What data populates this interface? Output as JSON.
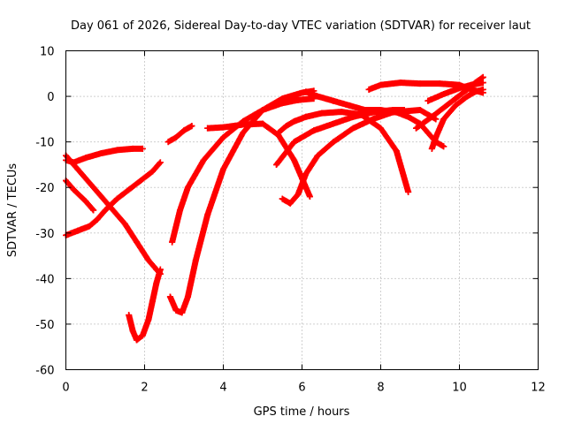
{
  "chart_data": {
    "type": "scatter",
    "title": "Day 061 of 2026, Sidereal Day-to-day VTEC variation (SDTVAR) for receiver laut",
    "xlabel": "GPS time / hours",
    "ylabel": "SDTVAR / TECUs",
    "xlim": [
      0,
      12
    ],
    "ylim": [
      -60,
      10
    ],
    "xticks": [
      "0",
      "2",
      "4",
      "6",
      "8",
      "10",
      "12"
    ],
    "yticks": [
      "-60",
      "-50",
      "-40",
      "-30",
      "-20",
      "-10",
      "0",
      "10"
    ],
    "grid": true,
    "marker": "plus",
    "marker_color": "#ff0000",
    "series": [
      {
        "x": [
          0.0,
          0.2,
          0.5,
          0.9,
          1.3,
          1.7,
          1.95
        ],
        "y": [
          -14,
          -14.5,
          -13.5,
          -12.5,
          -11.8,
          -11.5,
          -11.5
        ]
      },
      {
        "x": [
          0.0,
          0.3,
          0.7,
          1.1,
          1.5,
          1.8,
          2.1,
          2.3,
          2.4
        ],
        "y": [
          -13,
          -16,
          -20,
          -24,
          -28,
          -32,
          -36,
          -38,
          -39
        ]
      },
      {
        "x": [
          0.0,
          0.2,
          0.5,
          0.7
        ],
        "y": [
          -18.5,
          -20.5,
          -23,
          -25
        ]
      },
      {
        "x": [
          0.0,
          0.3,
          0.6,
          0.8,
          1.0,
          1.3,
          1.6,
          1.9,
          2.2,
          2.4
        ],
        "y": [
          -30.5,
          -29.5,
          -28.5,
          -27,
          -25,
          -22.5,
          -20.5,
          -18.5,
          -16.5,
          -14.5
        ]
      },
      {
        "x": [
          1.6,
          1.7,
          1.8,
          1.95,
          2.1,
          2.2,
          2.3,
          2.4
        ],
        "y": [
          -48,
          -51.5,
          -53.5,
          -52.5,
          -49,
          -45,
          -41,
          -38
        ]
      },
      {
        "x": [
          2.6,
          2.8,
          3.0,
          3.2
        ],
        "y": [
          -10,
          -9,
          -7.5,
          -6.5
        ]
      },
      {
        "x": [
          2.7,
          2.9,
          3.1,
          3.5,
          4.0,
          4.5,
          5.0,
          5.5,
          5.9,
          6.3
        ],
        "y": [
          -32,
          -25,
          -20,
          -14,
          -9,
          -5.5,
          -3,
          -1.5,
          -0.8,
          -0.5
        ]
      },
      {
        "x": [
          2.65,
          2.8,
          2.95,
          3.1,
          3.3,
          3.6,
          4.0,
          4.5,
          5.0,
          5.5,
          6.0,
          6.3
        ],
        "y": [
          -44,
          -47,
          -47.5,
          -44,
          -36,
          -26,
          -16,
          -8,
          -3,
          -0.5,
          0.8,
          1.2
        ]
      },
      {
        "x": [
          3.6,
          4.0,
          4.5,
          5.0,
          5.4,
          5.8,
          6.0,
          6.2
        ],
        "y": [
          -7,
          -6.8,
          -6.2,
          -6,
          -8.5,
          -14,
          -18,
          -22
        ]
      },
      {
        "x": [
          5.4,
          5.6,
          5.8,
          6.1,
          6.5,
          7.0,
          7.5,
          8.0,
          8.4,
          8.7
        ],
        "y": [
          -8,
          -6.5,
          -5.5,
          -4.5,
          -3.7,
          -3.4,
          -4,
          -7,
          -12,
          -21
        ]
      },
      {
        "x": [
          5.5,
          5.7,
          5.9,
          6.1,
          6.4,
          6.8,
          7.3,
          7.8,
          8.3,
          9.0,
          9.4
        ],
        "y": [
          -22.5,
          -23.5,
          -21.5,
          -17,
          -13,
          -10,
          -7,
          -5,
          -3.5,
          -3,
          -5
        ]
      },
      {
        "x": [
          5.35,
          5.8,
          6.3,
          6.8,
          7.3,
          7.8,
          8.3,
          8.6
        ],
        "y": [
          -15,
          -10,
          -7.5,
          -6,
          -4.5,
          -3.5,
          -3,
          -3
        ]
      },
      {
        "x": [
          6.1,
          6.4,
          6.8,
          7.2,
          7.6,
          8.0,
          8.4,
          8.7,
          9.0,
          9.2,
          9.4,
          9.6
        ],
        "y": [
          1,
          0,
          -1,
          -2,
          -3,
          -3,
          -3.5,
          -4.5,
          -6,
          -8,
          -10,
          -11
        ]
      },
      {
        "x": [
          7.7,
          8.0,
          8.5,
          9.0,
          9.5,
          10.0,
          10.3,
          10.6
        ],
        "y": [
          1.5,
          2.5,
          3,
          2.8,
          2.8,
          2.5,
          1.5,
          0.8
        ]
      },
      {
        "x": [
          9.3,
          9.4,
          9.6,
          9.9,
          10.2,
          10.4,
          10.6
        ],
        "y": [
          -11.5,
          -9,
          -5,
          -2,
          0,
          1,
          1.5
        ]
      },
      {
        "x": [
          8.9,
          9.3,
          9.6,
          9.9,
          10.2,
          10.4,
          10.6
        ],
        "y": [
          -7,
          -4.5,
          -2.5,
          -0.5,
          1.5,
          3,
          4.2
        ]
      },
      {
        "x": [
          9.2,
          9.6,
          10.0,
          10.3,
          10.6
        ],
        "y": [
          -1,
          0.5,
          1.8,
          2.5,
          3
        ]
      }
    ]
  }
}
